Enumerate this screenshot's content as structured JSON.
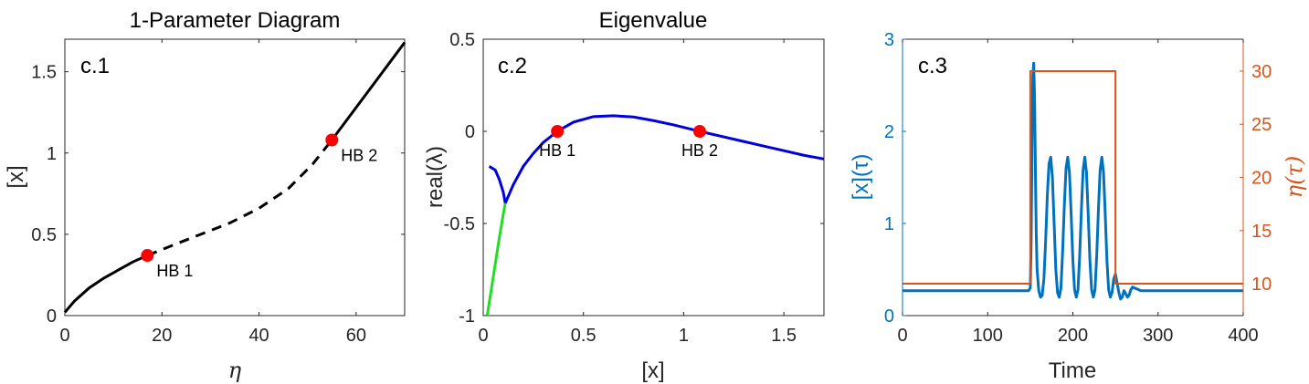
{
  "chart_data": [
    {
      "id": "c1",
      "type": "line",
      "title": "1-Parameter Diagram",
      "panel_label": "c.1",
      "xlabel": "η",
      "ylabel": "[x]",
      "xlim": [
        0,
        70
      ],
      "ylim": [
        0,
        1.7
      ],
      "xticks": [
        0,
        20,
        40,
        60
      ],
      "yticks": [
        0,
        0.5,
        1,
        1.5
      ],
      "xtick_labels": [
        "0",
        "20",
        "40",
        "60"
      ],
      "ytick_labels": [
        "0",
        "0.5",
        "1",
        "1.5"
      ],
      "color": "#000000",
      "series": [
        {
          "style": "stable",
          "x": [
            0,
            2,
            5,
            8,
            11,
            14,
            17
          ],
          "y": [
            0.02,
            0.09,
            0.17,
            0.23,
            0.28,
            0.33,
            0.37
          ]
        },
        {
          "style": "unstable",
          "x": [
            17,
            22,
            28,
            34,
            40,
            46,
            51,
            55
          ],
          "y": [
            0.37,
            0.43,
            0.5,
            0.57,
            0.66,
            0.78,
            0.93,
            1.08
          ]
        },
        {
          "style": "stable",
          "x": [
            55,
            58,
            61,
            64,
            67,
            70
          ],
          "y": [
            1.08,
            1.2,
            1.32,
            1.44,
            1.56,
            1.68
          ]
        }
      ],
      "points": [
        {
          "label": "HB 1",
          "x": 17,
          "y": 0.37
        },
        {
          "label": "HB 2",
          "x": 55,
          "y": 1.08
        }
      ]
    },
    {
      "id": "c2",
      "type": "line",
      "title": "Eigenvalue",
      "panel_label": "c.2",
      "xlabel": "[x]",
      "ylabel": "real(λ)",
      "xlim": [
        0,
        1.7
      ],
      "ylim": [
        -1,
        0.5
      ],
      "xticks": [
        0,
        0.5,
        1,
        1.5
      ],
      "yticks": [
        -1,
        -0.5,
        0,
        0.5
      ],
      "xtick_labels": [
        "0",
        "0.5",
        "1",
        "1.5"
      ],
      "ytick_labels": [
        "-1",
        "-0.5",
        "0",
        "0.5"
      ],
      "series": [
        {
          "color": "#0000dd",
          "x": [
            0.03,
            0.06,
            0.08,
            0.1,
            0.11
          ],
          "y": [
            -0.19,
            -0.21,
            -0.26,
            -0.33,
            -0.39
          ]
        },
        {
          "color": "#0000dd",
          "x": [
            0.11,
            0.15,
            0.2,
            0.25,
            0.3,
            0.37,
            0.45,
            0.55,
            0.65,
            0.75,
            0.85,
            0.95,
            1.08,
            1.2,
            1.3,
            1.4,
            1.5,
            1.6,
            1.7
          ],
          "y": [
            -0.39,
            -0.29,
            -0.19,
            -0.12,
            -0.06,
            0,
            0.05,
            0.08,
            0.085,
            0.078,
            0.058,
            0.035,
            0,
            -0.03,
            -0.055,
            -0.08,
            -0.105,
            -0.13,
            -0.15
          ]
        },
        {
          "color": "#22dd22",
          "x": [
            0.11,
            0.1,
            0.08,
            0.06,
            0.04,
            0.03,
            0.02
          ],
          "y": [
            -0.39,
            -0.45,
            -0.58,
            -0.72,
            -0.86,
            -0.93,
            -1.0
          ]
        }
      ],
      "points": [
        {
          "label": "HB 1",
          "x": 0.37,
          "y": 0
        },
        {
          "label": "HB 2",
          "x": 1.08,
          "y": 0
        }
      ]
    },
    {
      "id": "c3",
      "type": "line",
      "title": "",
      "panel_label": "c.3",
      "xlabel": "Time",
      "ylabel": "[x](τ)",
      "ylabel_right": "η(τ)",
      "xlim": [
        0,
        400
      ],
      "ylim": [
        0,
        3
      ],
      "ylim_right": [
        7,
        33
      ],
      "xticks": [
        0,
        100,
        200,
        300,
        400
      ],
      "yticks": [
        0,
        1,
        2,
        3
      ],
      "yticks_right": [
        10,
        15,
        20,
        25,
        30
      ],
      "xtick_labels": [
        "0",
        "100",
        "200",
        "300",
        "400"
      ],
      "ytick_labels": [
        "0",
        "1",
        "2",
        "3"
      ],
      "ytick_labels_right": [
        "10",
        "15",
        "20",
        "25",
        "30"
      ],
      "left_color": "#0072bd",
      "right_color": "#d95319",
      "series": [
        {
          "name": "[x](τ)",
          "axis": "left",
          "color": "#0072bd",
          "x": [
            0,
            148,
            150,
            151,
            152,
            153,
            154,
            155,
            156,
            157,
            158,
            160,
            162,
            164,
            166,
            168,
            170,
            172,
            174,
            176,
            178,
            180,
            182,
            184,
            186,
            188,
            190,
            192,
            194,
            196,
            198,
            200,
            202,
            204,
            206,
            208,
            210,
            212,
            214,
            216,
            218,
            220,
            222,
            224,
            226,
            228,
            230,
            232,
            234,
            236,
            238,
            240,
            242,
            244,
            246,
            248,
            250,
            252,
            254,
            256,
            258,
            260,
            262,
            264,
            266,
            268,
            270,
            275,
            280,
            290,
            300,
            400
          ],
          "y": [
            0.27,
            0.27,
            0.3,
            0.8,
            1.8,
            2.6,
            2.74,
            2.4,
            1.6,
            0.9,
            0.5,
            0.27,
            0.2,
            0.22,
            0.4,
            0.8,
            1.3,
            1.65,
            1.72,
            1.5,
            1.0,
            0.5,
            0.25,
            0.2,
            0.3,
            0.7,
            1.2,
            1.6,
            1.72,
            1.55,
            1.1,
            0.6,
            0.28,
            0.2,
            0.28,
            0.65,
            1.15,
            1.58,
            1.72,
            1.55,
            1.1,
            0.6,
            0.28,
            0.2,
            0.28,
            0.65,
            1.15,
            1.58,
            1.72,
            1.55,
            1.1,
            0.6,
            0.28,
            0.2,
            0.25,
            0.4,
            0.45,
            0.35,
            0.25,
            0.18,
            0.2,
            0.27,
            0.24,
            0.2,
            0.22,
            0.28,
            0.31,
            0.29,
            0.27,
            0.27,
            0.27,
            0.27
          ]
        },
        {
          "name": "η(τ)",
          "axis": "right",
          "color": "#d95319",
          "x": [
            0,
            150,
            150.01,
            250,
            250.01,
            400
          ],
          "y": [
            10,
            10,
            30,
            30,
            10,
            10
          ]
        }
      ]
    }
  ]
}
